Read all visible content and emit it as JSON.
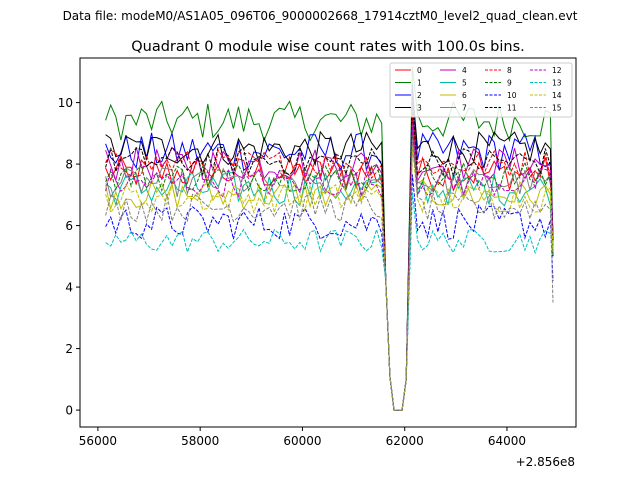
{
  "chart_data": {
    "type": "line",
    "suptitle": "Data file: modeM0/AS1A05_096T06_9000002668_17914cztM0_level2_quad_clean.evt",
    "title": "Quadrant 0 module wise count rates with 100.0s bins.",
    "xlabel": "",
    "ylabel": "",
    "x_offset_label": "+2.856e8",
    "xlim": [
      55650,
      65350
    ],
    "ylim": [
      -0.55,
      11.45
    ],
    "x_ticks": [
      56000,
      58000,
      60000,
      62000,
      64000
    ],
    "x_tick_labels": [
      "56000",
      "58000",
      "60000",
      "62000",
      "64000"
    ],
    "y_ticks": [
      0,
      2,
      4,
      6,
      8,
      10
    ],
    "y_tick_labels": [
      "0",
      "2",
      "4",
      "6",
      "8",
      "10"
    ],
    "x_start": 56150,
    "x_step": 100,
    "gap": {
      "start": 61550,
      "end": 62050,
      "dip": [
        4.2,
        1.1,
        0.0,
        0.0,
        0.0,
        1.0
      ]
    },
    "end_values": [
      5.5,
      5.2,
      5.7,
      5.0,
      5.6,
      5.3,
      5.1,
      5.4,
      5.6,
      5.0,
      4.2,
      5.5,
      5.7,
      5.3,
      5.2,
      3.5
    ],
    "legend_position": "upper right",
    "series": [
      {
        "name": "0",
        "color": "#ff0000",
        "dash": "solid",
        "mean": 7.7,
        "std": 0.35
      },
      {
        "name": "1",
        "color": "#008000",
        "dash": "solid",
        "mean": 9.4,
        "std": 0.4
      },
      {
        "name": "2",
        "color": "#0000ff",
        "dash": "solid",
        "mean": 8.4,
        "std": 0.4
      },
      {
        "name": "3",
        "color": "#000000",
        "dash": "solid",
        "mean": 8.5,
        "std": 0.35
      },
      {
        "name": "4",
        "color": "#bf00bf",
        "dash": "solid",
        "mean": 8.0,
        "std": 0.35
      },
      {
        "name": "5",
        "color": "#00bf9f",
        "dash": "solid",
        "mean": 7.2,
        "std": 0.35
      },
      {
        "name": "6",
        "color": "#bfbf00",
        "dash": "solid",
        "mean": 7.0,
        "std": 0.3
      },
      {
        "name": "7",
        "color": "#808080",
        "dash": "solid",
        "mean": 7.4,
        "std": 0.3
      },
      {
        "name": "8",
        "color": "#ff0000",
        "dash": "dashed",
        "mean": 8.0,
        "std": 0.3
      },
      {
        "name": "9",
        "color": "#008000",
        "dash": "dashed",
        "mean": 7.6,
        "std": 0.3
      },
      {
        "name": "10",
        "color": "#0000ff",
        "dash": "dashed",
        "mean": 6.1,
        "std": 0.35
      },
      {
        "name": "11",
        "color": "#000000",
        "dash": "dashed",
        "mean": 8.1,
        "std": 0.3
      },
      {
        "name": "12",
        "color": "#bf00bf",
        "dash": "dashed",
        "mean": 7.4,
        "std": 0.3
      },
      {
        "name": "13",
        "color": "#00bfbf",
        "dash": "dashed",
        "mean": 5.5,
        "std": 0.25
      },
      {
        "name": "14",
        "color": "#bfbf00",
        "dash": "dashed",
        "mean": 6.9,
        "std": 0.3
      },
      {
        "name": "15",
        "color": "#808080",
        "dash": "dashed",
        "mean": 6.6,
        "std": 0.3
      }
    ]
  }
}
